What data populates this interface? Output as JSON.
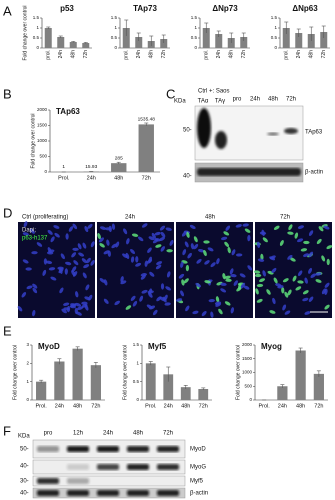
{
  "panel_labels": [
    "A",
    "B",
    "C",
    "D",
    "E",
    "F"
  ],
  "chart_data": [
    {
      "type": "bar",
      "title": "p53",
      "ylabel": "Fold change over control",
      "categories": [
        "prol.",
        "24h",
        "48h",
        "72h"
      ],
      "values": [
        1,
        0.55,
        0.3,
        0.25
      ],
      "errors": [
        0.05,
        0.05,
        0.03,
        0.03
      ],
      "ylim": [
        0,
        1.5
      ],
      "yticks": [
        0,
        0.5,
        1,
        1.5
      ],
      "color": "#808080"
    },
    {
      "type": "bar",
      "title": "TAp73",
      "categories": [
        "prol.",
        "24h",
        "48h",
        "72h"
      ],
      "values": [
        1,
        0.55,
        0.35,
        0.45
      ],
      "errors": [
        0.4,
        0.2,
        0.25,
        0.2
      ],
      "ylim": [
        0,
        1.5
      ],
      "yticks": [
        0,
        0.5,
        1,
        1.5
      ],
      "color": "#808080"
    },
    {
      "type": "bar",
      "title": "ΔNp73",
      "categories": [
        "prol.",
        "24h",
        "48h",
        "72h"
      ],
      "values": [
        1,
        0.7,
        0.5,
        0.55
      ],
      "errors": [
        0.25,
        0.15,
        0.25,
        0.2
      ],
      "ylim": [
        0,
        1.5
      ],
      "yticks": [
        0,
        0.5,
        1,
        1.5
      ],
      "color": "#808080"
    },
    {
      "type": "bar",
      "title": "ΔNp63",
      "categories": [
        "prol.",
        "24h",
        "48h",
        "72h"
      ],
      "values": [
        1,
        0.75,
        0.7,
        0.8
      ],
      "errors": [
        0.3,
        0.2,
        0.35,
        0.3
      ],
      "ylim": [
        0,
        1.5
      ],
      "yticks": [
        0,
        0.5,
        1,
        1.5
      ],
      "color": "#808080"
    },
    {
      "type": "bar",
      "title": "TAp63",
      "ylabel": "Fold change over control",
      "categories": [
        "Prol.",
        "24h",
        "48h",
        "72h"
      ],
      "values": [
        1,
        15.93,
        285,
        1535.48
      ],
      "errors": [
        0,
        2,
        30,
        45
      ],
      "ylim": [
        0,
        2000
      ],
      "yticks": [
        0,
        500,
        1000,
        1500,
        2000
      ],
      "color": "#808080",
      "show_values": true
    },
    {
      "type": "bar",
      "title": "MyoD",
      "ylabel": "Fold change over control",
      "categories": [
        "Prol.",
        "24h",
        "48h",
        "72h"
      ],
      "values": [
        1,
        2.1,
        2.8,
        1.9
      ],
      "errors": [
        0.08,
        0.15,
        0.1,
        0.15
      ],
      "ylim": [
        0,
        3
      ],
      "yticks": [
        0,
        1,
        2,
        3
      ],
      "color": "#808080"
    },
    {
      "type": "bar",
      "title": "Myf5",
      "ylabel": "Fold change over control",
      "categories": [
        "Prol.",
        "24h",
        "48h",
        "72h"
      ],
      "values": [
        1,
        0.7,
        0.35,
        0.3
      ],
      "errors": [
        0.05,
        0.2,
        0.05,
        0.03
      ],
      "ylim": [
        0,
        1.5
      ],
      "yticks": [
        0,
        0.5,
        1,
        1.5
      ],
      "color": "#808080"
    },
    {
      "type": "bar",
      "title": "Myog",
      "ylabel": "Fold change over control",
      "categories": [
        "Prol.",
        "24h",
        "48h",
        "72h"
      ],
      "values": [
        1,
        500,
        1800,
        950
      ],
      "errors": [
        0,
        60,
        90,
        110
      ],
      "ylim": [
        0,
        2000
      ],
      "yticks": [
        0,
        500,
        1000,
        1500,
        2000
      ],
      "color": "#808080"
    }
  ],
  "blot_c": {
    "header": "Ctrl +: Saos",
    "kda": "KDa",
    "lanes": [
      "TAα",
      "TAγ",
      "pro",
      "24h",
      "48h",
      "72h"
    ],
    "markers": [
      "50-",
      "40-"
    ],
    "bands": [
      "TAp63",
      "β-actin"
    ]
  },
  "micrographs": {
    "panels": [
      "Ctrl (proliferating)",
      "24h",
      "48h",
      "72h"
    ],
    "stains": [
      "Dapi;",
      "p63-h137"
    ]
  },
  "blot_f": {
    "kda": "KDa",
    "lanes": [
      "pro",
      "12h",
      "24h",
      "48h",
      "72h"
    ],
    "markers": [
      "50-",
      "40-",
      "30-",
      "40-"
    ],
    "bands": [
      "MyoD",
      "MyoG",
      "Myf5",
      "β-actin"
    ]
  }
}
